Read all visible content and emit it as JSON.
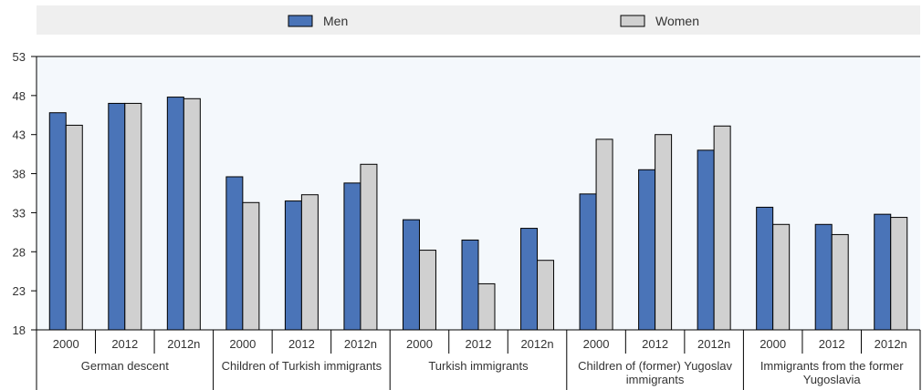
{
  "chart_data": {
    "type": "bar",
    "title": "",
    "xlabel": "",
    "ylabel": "",
    "ylim": [
      18,
      53
    ],
    "yticks": [
      18,
      23,
      28,
      33,
      38,
      43,
      48,
      53
    ],
    "grid": false,
    "legend_position": "top",
    "groups": [
      {
        "label": "German descent",
        "categories": [
          "2000",
          "2012",
          "2012n"
        ]
      },
      {
        "label": "Children of Turkish immigrants",
        "categories": [
          "2000",
          "2012",
          "2012n"
        ]
      },
      {
        "label": "Turkish immigrants",
        "categories": [
          "2000",
          "2012",
          "2012n"
        ]
      },
      {
        "label": "Children of  (former) Yugoslav immigrants",
        "categories": [
          "2000",
          "2012",
          "2012n"
        ]
      },
      {
        "label": "Immigrants from the former Yugoslavia",
        "categories": [
          "2000",
          "2012",
          "2012n"
        ]
      }
    ],
    "series": [
      {
        "name": "Men",
        "color": "#4a74b8",
        "values": [
          45.8,
          47.0,
          47.8,
          37.6,
          34.5,
          36.8,
          32.1,
          29.5,
          31.0,
          35.4,
          38.5,
          41.0,
          33.7,
          31.5,
          32.8
        ]
      },
      {
        "name": "Women",
        "color": "#d0d0d0",
        "values": [
          44.2,
          47.0,
          47.6,
          34.3,
          35.3,
          39.2,
          28.2,
          23.9,
          26.9,
          42.4,
          43.0,
          44.1,
          31.5,
          30.2,
          32.4
        ]
      }
    ]
  }
}
